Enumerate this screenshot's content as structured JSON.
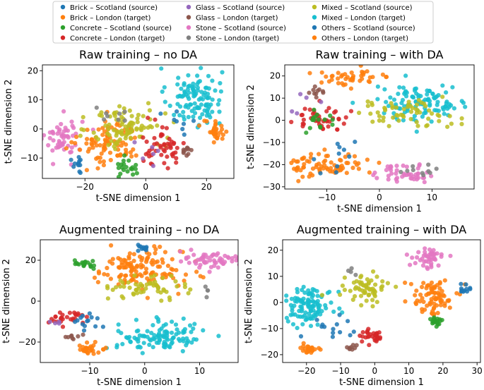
{
  "legend": {
    "position": "top-center",
    "entries": [
      {
        "label": "Brick – Scotland (source)",
        "color": "#1f77b4"
      },
      {
        "label": "Brick – London (target)",
        "color": "#ff7f0e"
      },
      {
        "label": "Concrete – Scotland (source)",
        "color": "#2ca02c"
      },
      {
        "label": "Concrete – London (target)",
        "color": "#d62728"
      },
      {
        "label": "Glass – Scotland (source)",
        "color": "#9467bd"
      },
      {
        "label": "Glass – London (target)",
        "color": "#8c564b"
      },
      {
        "label": "Stone – Scotland (source)",
        "color": "#e377c2"
      },
      {
        "label": "Stone – London (target)",
        "color": "#7f7f7f"
      },
      {
        "label": "Mixed – Scotland (source)",
        "color": "#bcbd22"
      },
      {
        "label": "Mixed – London (target)",
        "color": "#17becf"
      },
      {
        "label": "Others – Scotland (source)",
        "color": "#1f77b4"
      },
      {
        "label": "Others – London (target)",
        "color": "#ff7f0e"
      }
    ]
  },
  "chart_data": [
    {
      "type": "scatter",
      "title": "Raw training – no DA",
      "xlabel": "t-SNE dimension 1",
      "ylabel": "t-SNE dimension 2",
      "xlim": [
        -34,
        29
      ],
      "ylim": [
        -17,
        22
      ],
      "xticks": [
        -20,
        0,
        20
      ],
      "yticks": [
        -10,
        0,
        10,
        20
      ],
      "tick_labels_x": [
        "−20",
        "0",
        "20"
      ],
      "tick_labels_y": [
        "−10",
        "0",
        "10",
        "20"
      ],
      "clusters": [
        {
          "series": 9,
          "cx": 16,
          "cy": 11,
          "sx": 4.5,
          "sy": 5,
          "n": 110
        },
        {
          "series": 6,
          "cx": -27,
          "cy": -3,
          "sx": 3,
          "sy": 3.5,
          "n": 55
        },
        {
          "series": 1,
          "cx": -12,
          "cy": -5,
          "sx": 5,
          "sy": 4,
          "n": 90
        },
        {
          "series": 8,
          "cx": -6,
          "cy": 1,
          "sx": 6,
          "sy": 4,
          "n": 90
        },
        {
          "series": 3,
          "cx": 5,
          "cy": -6,
          "sx": 4,
          "sy": 3.5,
          "n": 50
        },
        {
          "series": 2,
          "cx": -5,
          "cy": -13,
          "sx": 2.5,
          "sy": 2,
          "n": 20
        },
        {
          "series": 0,
          "cx": -22,
          "cy": -13,
          "sx": 1,
          "sy": 1.5,
          "n": 12
        },
        {
          "series": 11,
          "cx": 23,
          "cy": -1,
          "sx": 2,
          "sy": 2,
          "n": 30
        },
        {
          "series": 5,
          "cx": 13,
          "cy": -7,
          "sx": 1.2,
          "sy": 1.2,
          "n": 10
        },
        {
          "series": 4,
          "cx": 2,
          "cy": -9,
          "sx": 4,
          "sy": 2,
          "n": 6
        },
        {
          "series": 7,
          "cx": -10,
          "cy": 6,
          "sx": 3,
          "sy": 2.5,
          "n": 8
        },
        {
          "series": 10,
          "cx": 12,
          "cy": 3,
          "sx": 3,
          "sy": 3,
          "n": 8
        }
      ]
    },
    {
      "type": "scatter",
      "title": "Raw training – with DA",
      "xlabel": "t-SNE dimension 1",
      "ylabel": "t-SNE dimension 2",
      "xlim": [
        -18,
        18
      ],
      "ylim": [
        -31,
        25
      ],
      "xticks": [
        -10,
        0,
        10
      ],
      "yticks": [
        -30,
        -20,
        -10,
        0,
        10,
        20
      ],
      "tick_labels_x": [
        "−10",
        "0",
        "10"
      ],
      "tick_labels_y": [
        "−30",
        "−20",
        "−10",
        "0",
        "10",
        "20"
      ],
      "clusters": [
        {
          "series": 9,
          "cx": 8,
          "cy": 8,
          "sx": 4.5,
          "sy": 4,
          "n": 110
        },
        {
          "series": 8,
          "cx": 5,
          "cy": 3,
          "sx": 5,
          "sy": 3,
          "n": 60
        },
        {
          "series": 1,
          "cx": -10,
          "cy": -20,
          "sx": 3.5,
          "sy": 3,
          "n": 75
        },
        {
          "series": 6,
          "cx": 5,
          "cy": -24,
          "sx": 3,
          "sy": 2,
          "n": 45
        },
        {
          "series": 3,
          "cx": -11,
          "cy": 1,
          "sx": 2.5,
          "sy": 3,
          "n": 45
        },
        {
          "series": 2,
          "cx": -12,
          "cy": 0,
          "sx": 2,
          "sy": 2,
          "n": 15
        },
        {
          "series": 11,
          "cx": -5,
          "cy": 19,
          "sx": 4,
          "sy": 2,
          "n": 45
        },
        {
          "series": 5,
          "cx": -12,
          "cy": 13,
          "sx": 1,
          "sy": 1.5,
          "n": 10
        },
        {
          "series": 0,
          "cx": -8,
          "cy": -16,
          "sx": 3,
          "sy": 4,
          "n": 10
        },
        {
          "series": 7,
          "cx": 8,
          "cy": -22,
          "sx": 2,
          "sy": 2,
          "n": 10
        },
        {
          "series": 4,
          "cx": -10,
          "cy": 8,
          "sx": 3,
          "sy": 3,
          "n": 5
        }
      ]
    },
    {
      "type": "scatter",
      "title": "Augmented training – no DA",
      "xlabel": "t-SNE dimension 1",
      "ylabel": "t-SNE dimension 2",
      "xlim": [
        -19,
        17
      ],
      "ylim": [
        -30,
        30
      ],
      "xticks": [
        -10,
        0,
        10
      ],
      "yticks": [
        -20,
        0,
        20
      ],
      "tick_labels_x": [
        "−10",
        "0",
        "10"
      ],
      "tick_labels_y": [
        "−20",
        "0",
        "20"
      ],
      "clusters": [
        {
          "series": 1,
          "cx": -1,
          "cy": 15,
          "sx": 4,
          "sy": 5,
          "n": 130
        },
        {
          "series": 8,
          "cx": 1,
          "cy": 7,
          "sx": 3.5,
          "sy": 2.5,
          "n": 55
        },
        {
          "series": 6,
          "cx": 12,
          "cy": 20,
          "sx": 2.5,
          "sy": 2.5,
          "n": 55
        },
        {
          "series": 9,
          "cx": 3,
          "cy": -17,
          "sx": 4,
          "sy": 3.5,
          "n": 110
        },
        {
          "series": 2,
          "cx": -11,
          "cy": 18,
          "sx": 1.2,
          "sy": 1.2,
          "n": 20
        },
        {
          "series": 0,
          "cx": 0,
          "cy": 26,
          "sx": 0.7,
          "sy": 0.7,
          "n": 12
        },
        {
          "series": 3,
          "cx": -14,
          "cy": -8,
          "sx": 1.8,
          "sy": 1.5,
          "n": 28
        },
        {
          "series": 11,
          "cx": -10,
          "cy": -24,
          "sx": 1.5,
          "sy": 1.2,
          "n": 28
        },
        {
          "series": 10,
          "cx": -11,
          "cy": -11,
          "sx": 2,
          "sy": 3,
          "n": 14
        },
        {
          "series": 5,
          "cx": -13,
          "cy": -17,
          "sx": 1,
          "sy": 1,
          "n": 8
        },
        {
          "series": 7,
          "cx": 11,
          "cy": 5,
          "sx": 0.5,
          "sy": 1,
          "n": 4
        },
        {
          "series": 4,
          "cx": -16,
          "cy": -11,
          "sx": 0.7,
          "sy": 1,
          "n": 4
        }
      ]
    },
    {
      "type": "scatter",
      "title": "Augmented training – with DA",
      "xlabel": "t-SNE dimension 1",
      "ylabel": "t-SNE dimension 2",
      "xlim": [
        -27,
        31
      ],
      "ylim": [
        -23,
        24
      ],
      "xticks": [
        -20,
        -10,
        0,
        10,
        20,
        30
      ],
      "yticks": [
        -20,
        -10,
        0,
        10,
        20
      ],
      "tick_labels_x": [
        "−20",
        "−10",
        "0",
        "10",
        "20",
        "30"
      ],
      "tick_labels_y": [
        "−20",
        "−10",
        "0",
        "10",
        "20"
      ],
      "clusters": [
        {
          "series": 9,
          "cx": -19,
          "cy": -1,
          "sx": 3.5,
          "sy": 3.5,
          "n": 110
        },
        {
          "series": 8,
          "cx": -3,
          "cy": 5,
          "sx": 3,
          "sy": 2.5,
          "n": 60
        },
        {
          "series": 6,
          "cx": 16,
          "cy": 17,
          "sx": 2.5,
          "sy": 2,
          "n": 45
        },
        {
          "series": 1,
          "cx": 17,
          "cy": 2,
          "sx": 3,
          "sy": 3.5,
          "n": 80
        },
        {
          "series": 2,
          "cx": 18,
          "cy": -7,
          "sx": 1.3,
          "sy": 1,
          "n": 18
        },
        {
          "series": 0,
          "cx": 26,
          "cy": 5,
          "sx": 1.2,
          "sy": 0.8,
          "n": 12
        },
        {
          "series": 3,
          "cx": -1,
          "cy": -13,
          "sx": 2,
          "sy": 1.5,
          "n": 30
        },
        {
          "series": 11,
          "cx": -19,
          "cy": -18,
          "sx": 1.5,
          "sy": 1.3,
          "n": 25
        },
        {
          "series": 10,
          "cx": -12,
          "cy": -10,
          "sx": 3,
          "sy": 3,
          "n": 14
        },
        {
          "series": 5,
          "cx": -7,
          "cy": -17,
          "sx": 1,
          "sy": 1,
          "n": 8
        },
        {
          "series": 7,
          "cx": -7,
          "cy": 12,
          "sx": 1,
          "sy": 1,
          "n": 4
        }
      ]
    }
  ]
}
